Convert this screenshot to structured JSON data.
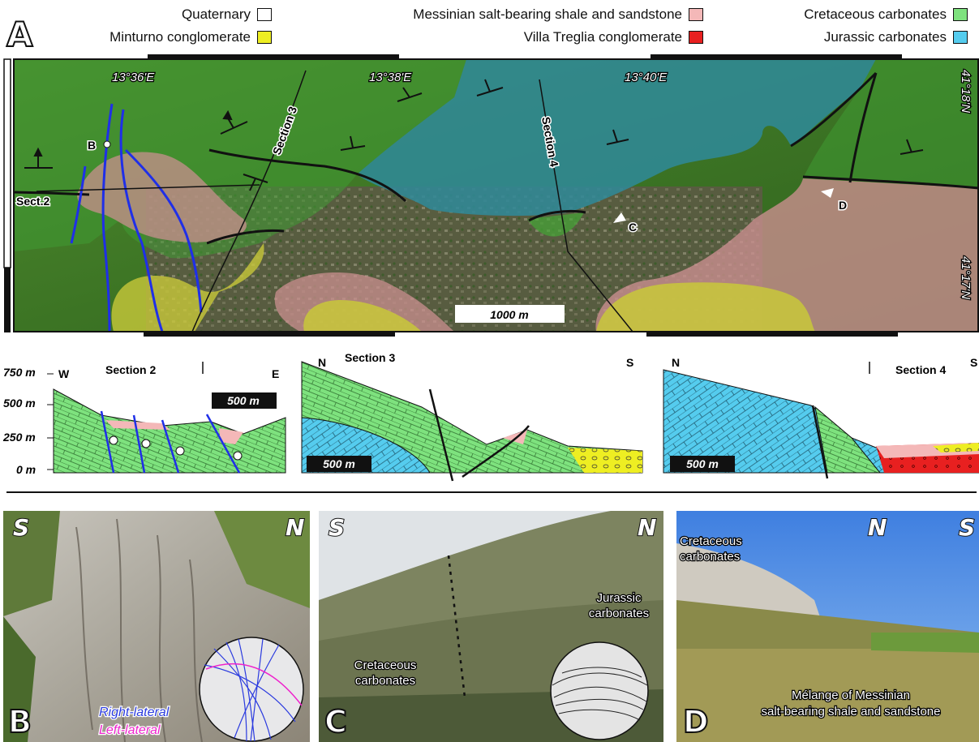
{
  "panel_letters": {
    "a": "A",
    "b": "B",
    "c": "C",
    "d": "D"
  },
  "legend": [
    {
      "label": "Quaternary",
      "color": "#ffffff"
    },
    {
      "label": "Minturno conglomerate",
      "color": "#eeee22"
    },
    {
      "label": "Messinian salt-bearing shale and sandstone",
      "color": "#f4b8b8"
    },
    {
      "label": "Villa Treglia conglomerate",
      "color": "#e82020"
    },
    {
      "label": "Cretaceous carbonates",
      "color": "#7ee27e"
    },
    {
      "label": "Jurassic carbonates",
      "color": "#55ccee"
    }
  ],
  "map": {
    "lon_labels": [
      "13°36'E",
      "13°38'E",
      "13°40'E"
    ],
    "lat_labels": [
      "41°18'N",
      "41°17'N"
    ],
    "section_labels": {
      "sect2": "Sect.2",
      "sect3": "Section 3",
      "sect4": "Section 4"
    },
    "points": {
      "b": "B",
      "c": "C",
      "d": "D"
    },
    "scale": "1000 m"
  },
  "sections": {
    "elevations": [
      "750 m",
      "500 m",
      "250 m",
      "0 m"
    ],
    "s2": {
      "title": "Section 2",
      "left": "W",
      "right": "E",
      "scale": "500 m"
    },
    "s3": {
      "title": "Section 3",
      "left": "N",
      "right": "S",
      "scale": "500 m"
    },
    "s4": {
      "title": "Section 4",
      "left": "N",
      "right": "S",
      "scale": "500 m"
    }
  },
  "photos": {
    "b": {
      "left": "S",
      "right": "N",
      "legend_right": "Right-lateral",
      "legend_left": "Left-lateral",
      "color_right": "#2a3adf",
      "color_left": "#ee22cc"
    },
    "c": {
      "left": "S",
      "right": "N",
      "label_jur": [
        "Jurassic",
        "carbonates"
      ],
      "label_cret": [
        "Cretaceous",
        "carbonates"
      ]
    },
    "d": {
      "left": "N",
      "right": "S",
      "label_cret": [
        "Cretaceous",
        "carbonates"
      ],
      "label_melange": [
        "Mélange of Messinian",
        "salt-bearing shale and sandstone"
      ]
    }
  }
}
